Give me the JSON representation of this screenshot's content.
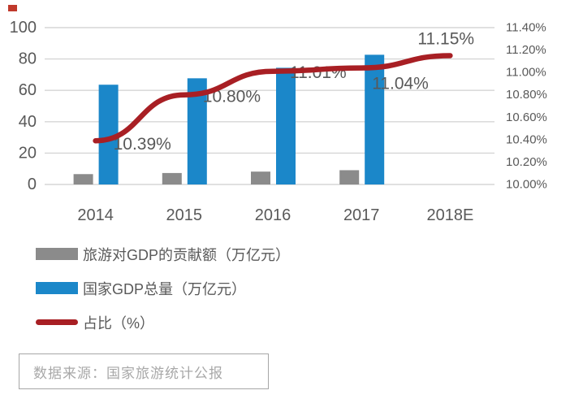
{
  "colors": {
    "tourism_bar": "#8b8b8b",
    "gdp_bar": "#1b87c9",
    "ratio_line": "#a81f24",
    "grid": "#d6d6d6",
    "axis_text": "#595959",
    "label_text": "#595959",
    "source_text": "#a8a8a8",
    "watermark": "#c0392b"
  },
  "chart_data": {
    "type": "combo-bar-line",
    "categories": [
      "2014",
      "2015",
      "2016",
      "2017",
      "2018E"
    ],
    "series": [
      {
        "name": "旅游对GDP的贡献额（万亿元）",
        "type": "bar",
        "color": "#8b8b8b",
        "values": [
          6.6,
          7.3,
          8.2,
          9.1,
          null
        ]
      },
      {
        "name": "国家GDP总量（万亿元）",
        "type": "bar",
        "color": "#1b87c9",
        "values": [
          63.6,
          67.7,
          74.4,
          82.7,
          null
        ]
      },
      {
        "name": "占比（%）",
        "type": "line",
        "axis": "secondary",
        "color": "#a81f24",
        "values": [
          10.39,
          10.8,
          11.01,
          11.04,
          11.15
        ],
        "point_labels": [
          "10.39%",
          "10.80%",
          "11.01%",
          "11.04%",
          "11.15%"
        ]
      }
    ],
    "primary_axis": {
      "min": 0,
      "max": 100,
      "tick_labels": [
        "100",
        "80",
        "60",
        "40",
        "20",
        "0"
      ]
    },
    "secondary_axis": {
      "min": 10.0,
      "max": 11.4,
      "tick_labels": [
        "11.40%",
        "11.20%",
        "11.00%",
        "10.80%",
        "10.60%",
        "10.40%",
        "10.20%",
        "10.00%"
      ]
    },
    "grid": "horizontal",
    "legend_position": "bottom-left"
  },
  "legend": {
    "items": [
      {
        "label": "旅游对GDP的贡献额（万亿元）",
        "swatch": "bar"
      },
      {
        "label": "国家GDP总量（万亿元）",
        "swatch": "bar"
      },
      {
        "label": "占比（%）",
        "swatch": "line"
      }
    ]
  },
  "source_note": "数据来源：国家旅游统计公报"
}
